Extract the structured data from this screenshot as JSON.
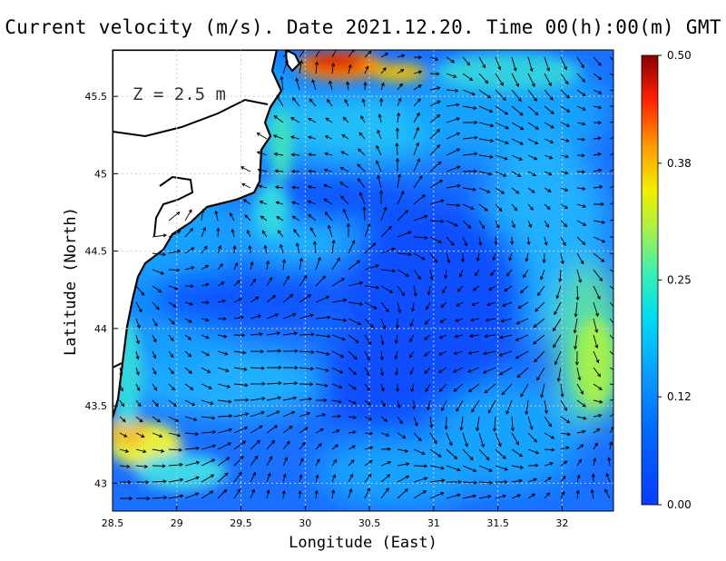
{
  "title": "Current velocity (m/s). Date 2021.12.20. Time 00(h):00(m) GMT",
  "depth_label": "Z = 2.5 m",
  "chart_data": {
    "type": "heatmap",
    "xlabel": "Longitude (East)",
    "ylabel": "Latitude (North)",
    "xlim": [
      28.5,
      32.4
    ],
    "ylim": [
      42.82,
      45.8
    ],
    "xticks": [
      "28.5",
      "29",
      "29.5",
      "30",
      "30.5",
      "31",
      "31.5",
      "32"
    ],
    "yticks": [
      "43",
      "43.5",
      "44",
      "44.5",
      "45",
      "45.5"
    ],
    "grid": true,
    "colorbar": {
      "min": 0.0,
      "max": 0.5,
      "ticks": [
        "0.00",
        "0.12",
        "0.25",
        "0.38",
        "0.50"
      ],
      "colormap": "jet"
    }
  }
}
